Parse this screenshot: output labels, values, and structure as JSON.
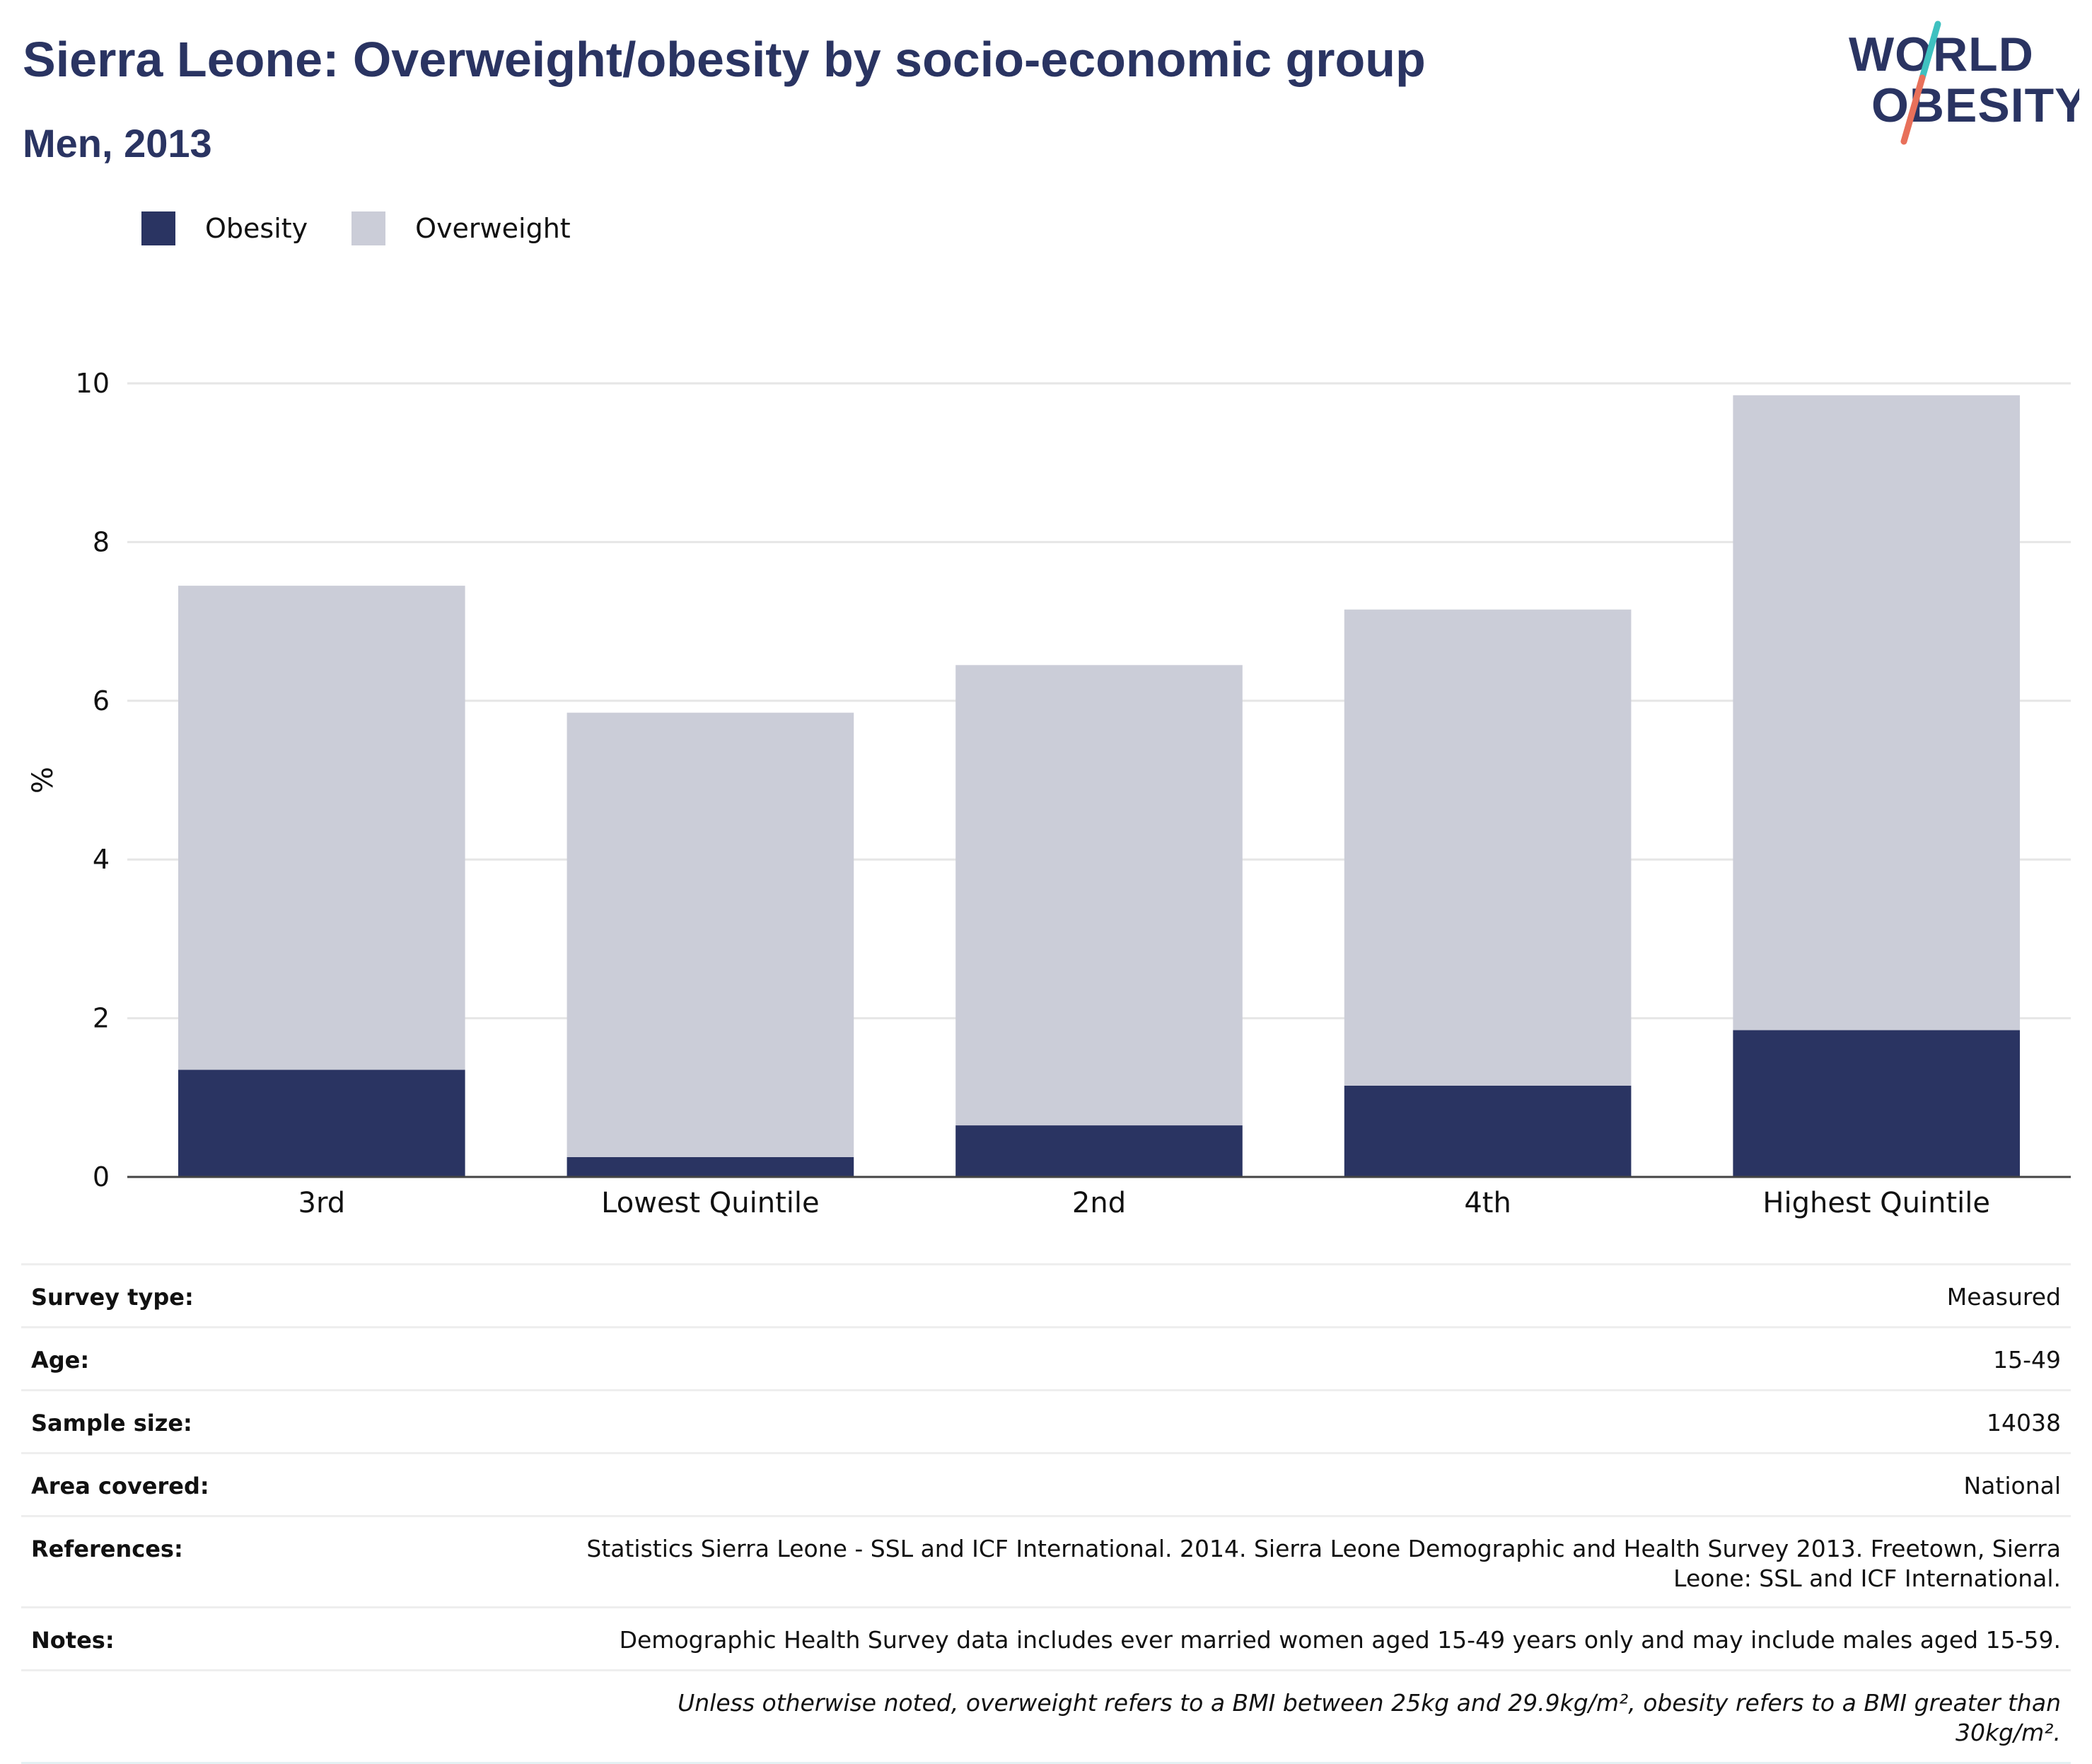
{
  "header": {
    "title": "Sierra Leone: Overweight/obesity by socio-economic group",
    "subtitle": "Men, 2013"
  },
  "logo": {
    "line1": "WORLD",
    "line2": "OBESITY"
  },
  "legend": {
    "items": [
      {
        "label": "Obesity",
        "color": "#2a3462"
      },
      {
        "label": "Overweight",
        "color": "#cbcdd8"
      }
    ]
  },
  "chart_data": {
    "type": "bar",
    "stacked": true,
    "categories": [
      "3rd",
      "Lowest Quintile",
      "2nd",
      "4th",
      "Highest Quintile"
    ],
    "series": [
      {
        "name": "Obesity",
        "color": "#2a3462",
        "values": [
          1.35,
          0.25,
          0.65,
          1.15,
          1.85
        ]
      },
      {
        "name": "Overweight",
        "color": "#cbcdd8",
        "values": [
          6.1,
          5.6,
          5.8,
          6.0,
          8.0
        ]
      }
    ],
    "ylabel": "%",
    "xlabel": "",
    "ylim": [
      0,
      10
    ],
    "yticks": [
      0,
      2,
      4,
      6,
      8,
      10
    ],
    "grid": true,
    "legend_position": "top-left"
  },
  "meta": {
    "rows": [
      {
        "label": "Survey type:",
        "value": "Measured"
      },
      {
        "label": "Age:",
        "value": "15-49"
      },
      {
        "label": "Sample size:",
        "value": "14038"
      },
      {
        "label": "Area covered:",
        "value": "National"
      },
      {
        "label": "References:",
        "value": "Statistics Sierra Leone - SSL and ICF International. 2014. Sierra Leone Demographic and Health Survey 2013. Freetown, Sierra Leone: SSL and ICF International."
      },
      {
        "label": "Notes:",
        "value": "Demographic Health Survey data includes ever married women aged 15-49 years only and may include males aged 15-59."
      }
    ],
    "footnote": "Unless otherwise noted, overweight refers to a BMI between 25kg and 29.9kg/m², obesity refers to a BMI greater than 30kg/m²."
  }
}
